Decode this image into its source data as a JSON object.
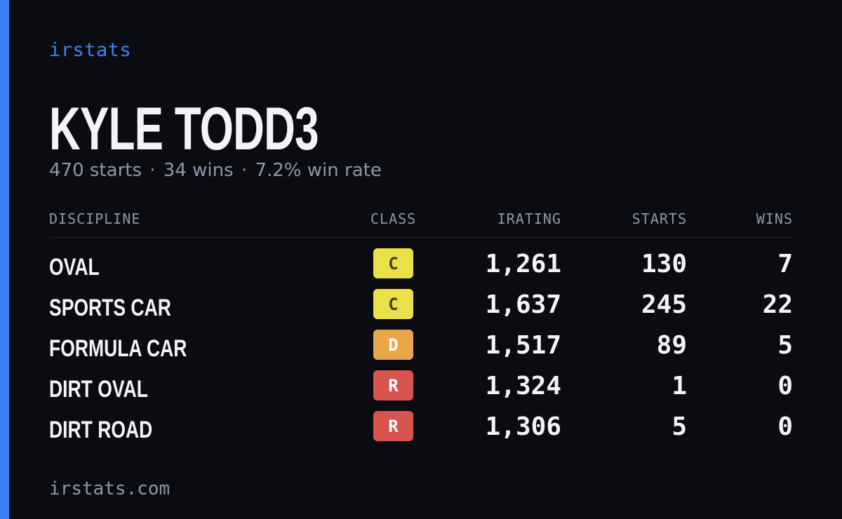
{
  "brand": "irstats",
  "player": {
    "name": "KYLE TODD3",
    "starts_text": "470 starts",
    "wins_text": "34 wins",
    "winrate_text": "7.2% win rate",
    "separator": "·"
  },
  "table": {
    "headers": {
      "discipline": "DISCIPLINE",
      "class": "CLASS",
      "irating": "IRATING",
      "starts": "STARTS",
      "wins": "WINS"
    },
    "rows": [
      {
        "discipline": "OVAL",
        "class": "C",
        "class_bg": "#ebe04a",
        "class_fg": "#4a4500",
        "irating": "1,261",
        "starts": "130",
        "wins": "7"
      },
      {
        "discipline": "SPORTS CAR",
        "class": "C",
        "class_bg": "#ebe04a",
        "class_fg": "#4a4500",
        "irating": "1,637",
        "starts": "245",
        "wins": "22"
      },
      {
        "discipline": "FORMULA CAR",
        "class": "D",
        "class_bg": "#e9a74a",
        "class_fg": "#ffffff",
        "irating": "1,517",
        "starts": "89",
        "wins": "5"
      },
      {
        "discipline": "DIRT OVAL",
        "class": "R",
        "class_bg": "#d9534f",
        "class_fg": "#ffffff",
        "irating": "1,324",
        "starts": "1",
        "wins": "0"
      },
      {
        "discipline": "DIRT ROAD",
        "class": "R",
        "class_bg": "#d9534f",
        "class_fg": "#ffffff",
        "irating": "1,306",
        "starts": "5",
        "wins": "0"
      }
    ]
  },
  "footer": "irstats.com",
  "colors": {
    "background": "#0a0c12",
    "accent": "#3b82f6",
    "text_primary": "#f2f4f8",
    "text_muted": "#8e97a8"
  }
}
